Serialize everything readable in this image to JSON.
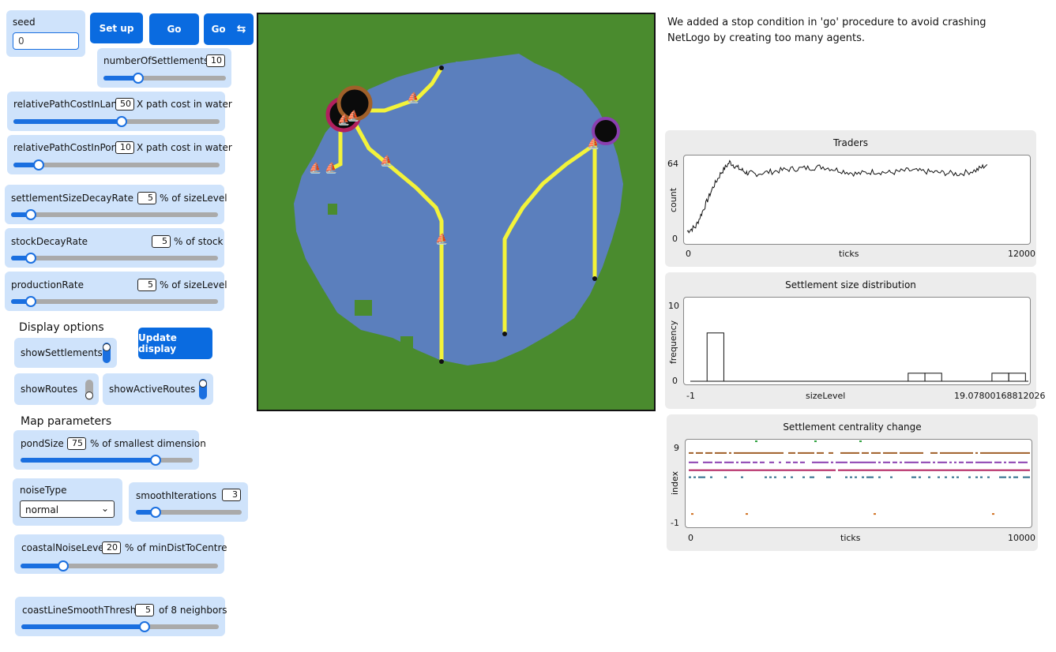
{
  "controls": {
    "seed": {
      "label": "seed",
      "value": "0"
    },
    "setup_label": "Set up",
    "go_label": "Go",
    "go_forever_label": "Go",
    "numberOfSettlements": {
      "label": "numberOfSettlements",
      "value": "10",
      "unit": "",
      "fraction": 0.12
    },
    "relativePathCostInLand": {
      "label": "relativePathCostInLand",
      "value": "50",
      "unit": "X path cost in water",
      "fraction": 0.5
    },
    "relativePathCostInPort": {
      "label": "relativePathCostInPort",
      "value": "10",
      "unit": "X path cost in water",
      "fraction": 0.11
    },
    "settlementSizeDecayRate": {
      "label": "settlementSizeDecayRate",
      "value": "5",
      "unit": "% of sizeLevel",
      "fraction": 0.07
    },
    "stockDecayRate": {
      "label": "stockDecayRate",
      "value": "5",
      "unit": "% of stock",
      "fraction": 0.07
    },
    "productionRate": {
      "label": "productionRate",
      "value": "5",
      "unit": "% of sizeLevel",
      "fraction": 0.07
    }
  },
  "display_options": {
    "title": "Display options",
    "update_label": "Update display",
    "showSettlements": {
      "label": "showSettlements",
      "on": true
    },
    "showRoutes": {
      "label": "showRoutes",
      "on": false
    },
    "showActiveRoutes": {
      "label": "showActiveRoutes",
      "on": true
    }
  },
  "map_parameters": {
    "title": "Map parameters",
    "pondSize": {
      "label": "pondSize",
      "value": "75",
      "unit": "% of smallest dimension",
      "fraction": 0.75
    },
    "noiseType": {
      "label": "noiseType",
      "selected": "normal"
    },
    "smoothIterations": {
      "label": "smoothIterations",
      "value": "3",
      "unit": "",
      "fraction": 0.18
    },
    "coastalNoiseLevel": {
      "label": "coastalNoiseLevel",
      "value": "20",
      "unit": "% of minDistToCentre",
      "fraction": 0.21
    },
    "coastLineSmoothThreshold": {
      "label": "coastLineSmoothThresh...",
      "value": "5",
      "unit": "of 8 neighbors",
      "fraction": 0.62
    }
  },
  "note": {
    "line1": "We added a stop condition in 'go' procedure to avoid crashing",
    "line2": "NetLogo by creating too many agents."
  },
  "colors": {
    "land": "#4a8b2e",
    "water": "#5b7fbd",
    "route": "#f3f33a",
    "accent": "#0a6be0"
  },
  "plots": {
    "traders": {
      "title": "Traders",
      "xlabel": "ticks",
      "ylabel": "count",
      "xmin": "0",
      "xmax": "12000",
      "ymin": "0",
      "ymax": "64"
    },
    "size_dist": {
      "title": "Settlement size distribution",
      "xlabel": "sizeLevel",
      "ylabel": "frequency",
      "xmin": "-1",
      "xmax": "19.07800168812026",
      "ymin": "0",
      "ymax": "10"
    },
    "centrality": {
      "title": "Settlement centrality change",
      "xlabel": "ticks",
      "ylabel": "index",
      "xmin": "0",
      "xmax": "10000",
      "ymin": "-1",
      "ymax": "9"
    }
  },
  "chart_data": [
    {
      "type": "line",
      "title": "Traders",
      "xlabel": "ticks",
      "ylabel": "count",
      "xlim": [
        0,
        12000
      ],
      "ylim": [
        0,
        70
      ],
      "x": [
        0,
        300,
        600,
        900,
        1200,
        1500,
        1800,
        2100,
        2400,
        3000,
        3600,
        4200,
        4800,
        5400,
        6000,
        6600,
        7200,
        7800,
        8400,
        9000,
        9600,
        10200,
        10600
      ],
      "y": [
        8,
        12,
        28,
        45,
        58,
        67,
        62,
        58,
        57,
        59,
        61,
        62,
        63,
        60,
        57,
        59,
        58,
        60,
        59,
        58,
        57,
        60,
        65
      ]
    },
    {
      "type": "bar",
      "title": "Settlement size distribution",
      "xlabel": "sizeLevel",
      "ylabel": "frequency",
      "xlim": [
        -1,
        19.07800168812026
      ],
      "ylim": [
        0,
        10
      ],
      "bins": [
        {
          "x0": 0.0,
          "x1": 1.0,
          "count": 6
        },
        {
          "x0": 12.0,
          "x1": 13.0,
          "count": 1
        },
        {
          "x0": 13.0,
          "x1": 14.0,
          "count": 1
        },
        {
          "x0": 17.0,
          "x1": 18.0,
          "count": 1
        },
        {
          "x0": 18.0,
          "x1": 19.0,
          "count": 1
        }
      ]
    },
    {
      "type": "scatter",
      "title": "Settlement centrality change",
      "xlabel": "ticks",
      "ylabel": "index",
      "xlim": [
        0,
        10000
      ],
      "ylim": [
        -1,
        9
      ],
      "series": [
        {
          "y": 8,
          "color": "#a0602a",
          "density": 0.85
        },
        {
          "y": 6.8,
          "color": "#8a3fb0",
          "density": 0.7
        },
        {
          "y": 5.8,
          "color": "#b0205e",
          "density": 0.98
        },
        {
          "y": 4.9,
          "color": "#2a6a8a",
          "density": 0.3
        },
        {
          "y": 9.5,
          "color": "#2aa03a",
          "density": 0.04
        },
        {
          "y": 0.2,
          "color": "#d07020",
          "density": 0.04
        }
      ]
    }
  ]
}
